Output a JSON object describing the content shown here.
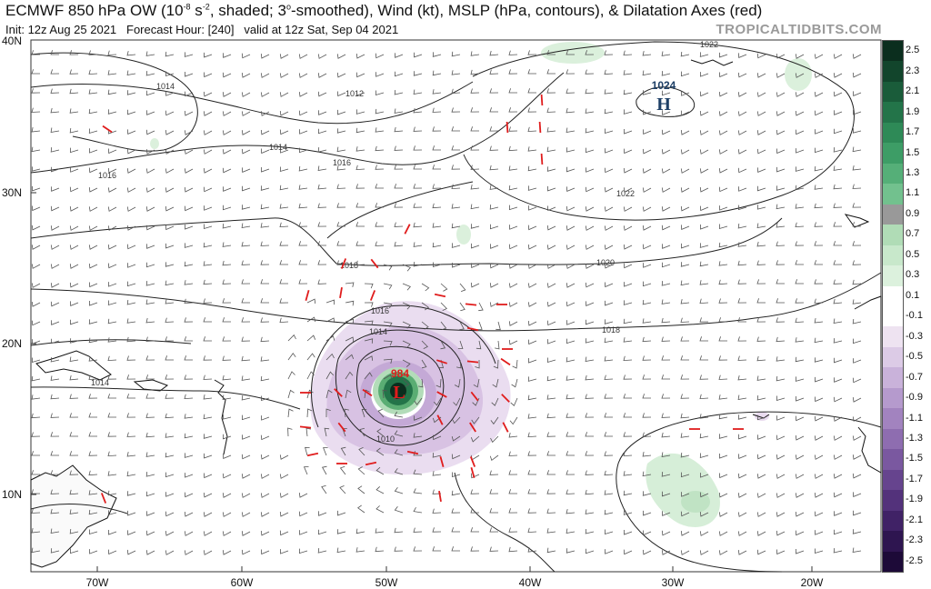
{
  "header": {
    "title_part1": "ECMWF 850 hPa OW (10",
    "title_sup1": "-8",
    "title_part2": " s",
    "title_sup2": "-2",
    "title_part3": ", shaded; 3",
    "title_sup3": "o",
    "title_part4": "-smoothed), Wind (kt), MSLP (hPa, contours), & Dilatation Axes (red)",
    "init": "Init: 12z Aug 25 2021",
    "forecast_hour": "Forecast Hour: [240]",
    "valid": "valid at 12z Sat, Sep 04 2021",
    "brand": "TROPICALTIDBITS.COM"
  },
  "axes": {
    "lat_labels": [
      "40N",
      "30N",
      "20N",
      "10N"
    ],
    "lon_labels": [
      "70W",
      "60W",
      "50W",
      "40W",
      "30W",
      "20W"
    ]
  },
  "pressure_labels": [
    "1014",
    "1012",
    "1014",
    "1016",
    "1016",
    "1018",
    "1016",
    "1014",
    "1014",
    "1010",
    "1018",
    "1020",
    "1022",
    "1022",
    "1024"
  ],
  "pressure_center": {
    "high_value": "1024",
    "high_letter": "H",
    "low_value": "984",
    "low_letter": "L"
  },
  "colorbar": {
    "labels": [
      "2.5",
      "2.3",
      "2.1",
      "1.9",
      "1.7",
      "1.5",
      "1.3",
      "1.1",
      "0.9",
      "0.7",
      "0.5",
      "0.3",
      "0.1",
      "-0.1",
      "-0.3",
      "-0.5",
      "-0.7",
      "-0.9",
      "-1.1",
      "-1.3",
      "-1.5",
      "-1.7",
      "-1.9",
      "-2.1",
      "-2.3",
      "-2.5"
    ],
    "colors": [
      "#0b2e1e",
      "#12452c",
      "#1a5c3a",
      "#237449",
      "#2e8a57",
      "#3d9d66",
      "#55af78",
      "#72c18e",
      "#999999",
      "#b0dcb6",
      "#c8e8cb",
      "#dcf1dd",
      "#ffffff",
      "#ffffff",
      "#eee3f1",
      "#dccbe6",
      "#c9b2da",
      "#b59acd",
      "#a283bf",
      "#8e6db0",
      "#7a58a0",
      "#66448e",
      "#53327b",
      "#402266",
      "#2e1550",
      "#1d0a38"
    ]
  },
  "colors": {
    "land": "#ffffff",
    "isobar": "#222222",
    "dilatation": "#e01c1c",
    "low_label": "#e01c1c",
    "high_label": "#1d3f66"
  }
}
